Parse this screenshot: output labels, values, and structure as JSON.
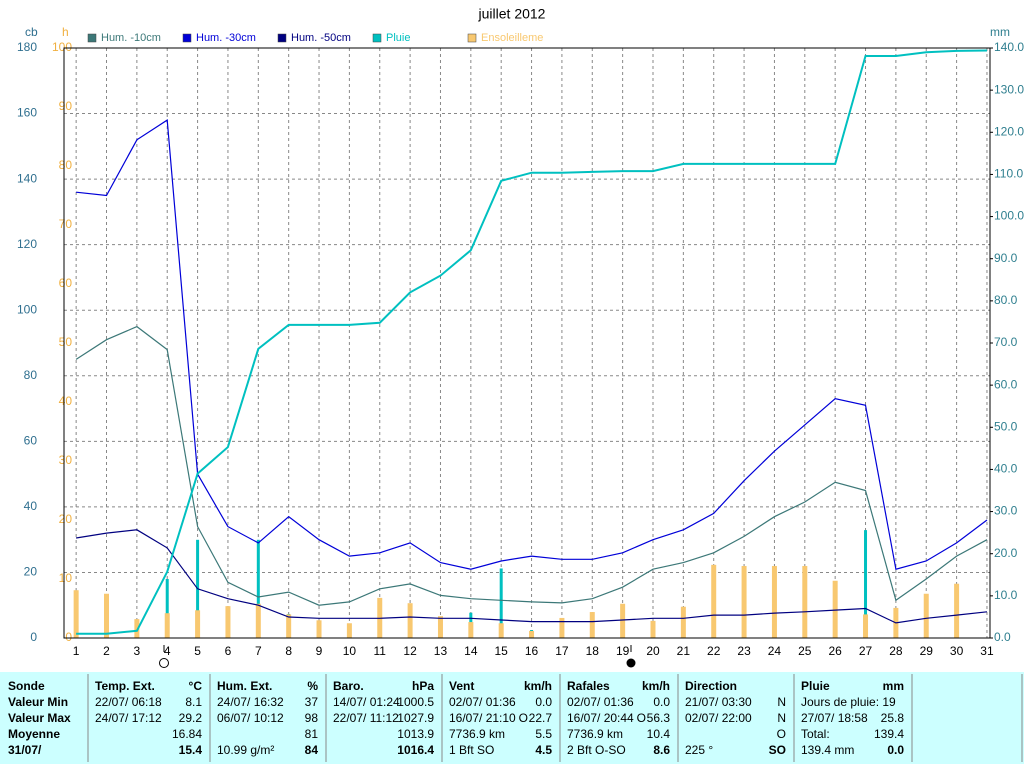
{
  "chart_data": {
    "type": "line",
    "title": "juillet 2012",
    "ylabel": "cb",
    "hlabel": "h",
    "y2label": "mm",
    "x": [
      1,
      2,
      3,
      4,
      5,
      6,
      7,
      8,
      9,
      10,
      11,
      12,
      13,
      14,
      15,
      16,
      17,
      18,
      19,
      20,
      21,
      22,
      23,
      24,
      25,
      26,
      27,
      28,
      29,
      30,
      31
    ],
    "xlim": [
      0.6,
      31.1
    ],
    "xticks": [
      1,
      2,
      3,
      4,
      5,
      6,
      7,
      8,
      9,
      10,
      11,
      12,
      13,
      14,
      15,
      16,
      17,
      18,
      19,
      20,
      21,
      22,
      23,
      24,
      25,
      26,
      27,
      28,
      29,
      30,
      31
    ],
    "ylim": [
      0,
      180
    ],
    "yticks": [
      0,
      20,
      40,
      60,
      80,
      100,
      120,
      140,
      160,
      180
    ],
    "hlim": [
      0,
      100
    ],
    "hticks": [
      0,
      10,
      20,
      30,
      40,
      50,
      60,
      70,
      80,
      90,
      100
    ],
    "y2lim": [
      0,
      140
    ],
    "y2ticks": [
      {
        "value": 0,
        "label": "0.0"
      },
      {
        "value": 10,
        "label": "10.0"
      },
      {
        "value": 20,
        "label": "20.0"
      },
      {
        "value": 30,
        "label": "30.0"
      },
      {
        "value": 40,
        "label": "40.0"
      },
      {
        "value": 50,
        "label": "50.0"
      },
      {
        "value": 60,
        "label": "60.0"
      },
      {
        "value": 70,
        "label": "70.0"
      },
      {
        "value": 80,
        "label": "80.0"
      },
      {
        "value": 90,
        "label": "90.0"
      },
      {
        "value": 100,
        "label": "100.0"
      },
      {
        "value": 110,
        "label": "110.0"
      },
      {
        "value": 120,
        "label": "120.0"
      },
      {
        "value": 130,
        "label": "130.0"
      },
      {
        "value": 140,
        "label": "140.0"
      }
    ],
    "grid": true,
    "series": [
      {
        "name": "Hum. -10cm",
        "color": "#3c7878",
        "axis": "y",
        "style": "line",
        "values": [
          85,
          91,
          95,
          88,
          34,
          17,
          12.5,
          14,
          10,
          11,
          15,
          16.5,
          13,
          12,
          11.5,
          11,
          10.7,
          12,
          15.5,
          21,
          23,
          26,
          31,
          37,
          41.5,
          47.5,
          45,
          11.5,
          18,
          25,
          30
        ]
      },
      {
        "name": "Hum. -30cm",
        "color": "#0000d8",
        "axis": "y",
        "style": "line",
        "values": [
          136,
          135,
          152,
          158,
          50,
          34,
          29,
          37,
          30,
          25,
          26,
          29,
          23,
          21,
          23.5,
          25,
          24,
          24,
          26,
          30,
          33,
          38,
          48,
          57,
          65,
          73,
          71,
          21,
          23.5,
          29,
          36
        ]
      },
      {
        "name": "Hum. -50cm",
        "color": "#000080",
        "axis": "y",
        "style": "line",
        "values": [
          30.5,
          32,
          33,
          27.5,
          15,
          12,
          10,
          6.4,
          6,
          6,
          6,
          6.4,
          6,
          6,
          5.5,
          5,
          5,
          5,
          5.5,
          6,
          6,
          7,
          7,
          7.6,
          8,
          8.5,
          9,
          4.6,
          6,
          7,
          8
        ]
      },
      {
        "name": "Pluie",
        "color": "#00c0c0",
        "axis": "y2",
        "style": "line",
        "values": [
          1,
          1,
          1.7,
          15.7,
          39,
          45.3,
          68.6,
          74.3,
          74.3,
          74.3,
          74.8,
          82,
          86,
          92,
          108.5,
          110.4,
          110.4,
          110.6,
          110.8,
          110.8,
          112.5,
          112.5,
          112.5,
          112.5,
          112.5,
          112.5,
          138.1,
          138.1,
          139,
          139.3,
          139.4
        ],
        "bar_values": [
          1,
          0,
          0.7,
          14,
          23.3,
          6.3,
          23.3,
          5.7,
          0,
          0,
          0.5,
          7.2,
          4,
          6,
          16.5,
          1.9,
          0,
          0.2,
          0.2,
          0,
          1.7,
          0,
          0,
          0,
          0,
          0,
          25.6,
          0,
          0.9,
          0.3,
          0.1
        ]
      },
      {
        "name": "Ensoleilleme",
        "color": "#f8c870",
        "axis": "h",
        "style": "bar",
        "values": [
          8.1,
          7.5,
          3.2,
          4.2,
          4.7,
          5.4,
          5.8,
          4,
          3,
          2.5,
          6.8,
          5.9,
          3.7,
          2.7,
          2.5,
          1.2,
          3.4,
          4.4,
          5.8,
          2.9,
          5.3,
          12.4,
          12.2,
          12.2,
          12.2,
          9.7,
          4,
          5.1,
          7.5,
          9.2,
          0
        ]
      }
    ]
  },
  "table": {
    "row_labels": [
      "Sonde",
      "Valeur Min",
      "Valeur Max",
      "Moyenne",
      "31/07/"
    ],
    "columns": [
      {
        "title": "Temp. Ext.",
        "unit": "°C",
        "cells": [
          {
            "left": "22/07/  06:18",
            "right": "8.1"
          },
          {
            "left": "24/07/  17:12",
            "right": "29.2"
          },
          {
            "right": "16.84"
          },
          {
            "right": "15.4"
          }
        ]
      },
      {
        "title": "Hum. Ext.",
        "unit": "%",
        "cells": [
          {
            "left": "24/07/  16:32",
            "right": "37"
          },
          {
            "left": "06/07/  10:12",
            "right": "98"
          },
          {
            "right": "81"
          },
          {
            "left": "10.99 g/m²",
            "right": "84"
          }
        ]
      },
      {
        "title": "Baro.",
        "unit": "hPa",
        "cells": [
          {
            "left": "14/07/  01:24",
            "right": "1000.5"
          },
          {
            "left": "22/07/  11:12",
            "right": "1027.9"
          },
          {
            "right": "1013.9"
          },
          {
            "right": "1016.4"
          }
        ]
      },
      {
        "title": "Vent",
        "unit": "km/h",
        "cells": [
          {
            "left": "02/07/  01:36",
            "right": "0.0"
          },
          {
            "left": "16/07/  21:10",
            "mid": "O",
            "right": "22.7"
          },
          {
            "left": "7736.9 km",
            "right": "5.5"
          },
          {
            "left": "1 Bft SO",
            "right": "4.5"
          }
        ]
      },
      {
        "title": "Rafales",
        "unit": "km/h",
        "cells": [
          {
            "left": "02/07/  01:36",
            "right": "0.0"
          },
          {
            "left": "16/07/  20:44",
            "mid": "O",
            "right": "56.3"
          },
          {
            "left": "7736.9 km",
            "right": "10.4"
          },
          {
            "left": "2 Bft O-SO",
            "right": "8.6"
          }
        ]
      },
      {
        "title": "Direction",
        "cells": [
          {
            "left": "21/07/  03:30",
            "right": "N"
          },
          {
            "left": "02/07/  22:00",
            "right": "N"
          },
          {
            "right": "O"
          },
          {
            "left": "225 °",
            "right": "SO"
          }
        ]
      },
      {
        "title": "Pluie",
        "unit": "mm",
        "cells": [
          {
            "left": "Jours de pluie: 19"
          },
          {
            "left": "27/07/  18:58",
            "right": "25.8"
          },
          {
            "left": "Total:",
            "right": "139.4"
          },
          {
            "left": "139.4 mm",
            "right": "0.0"
          }
        ]
      }
    ]
  }
}
